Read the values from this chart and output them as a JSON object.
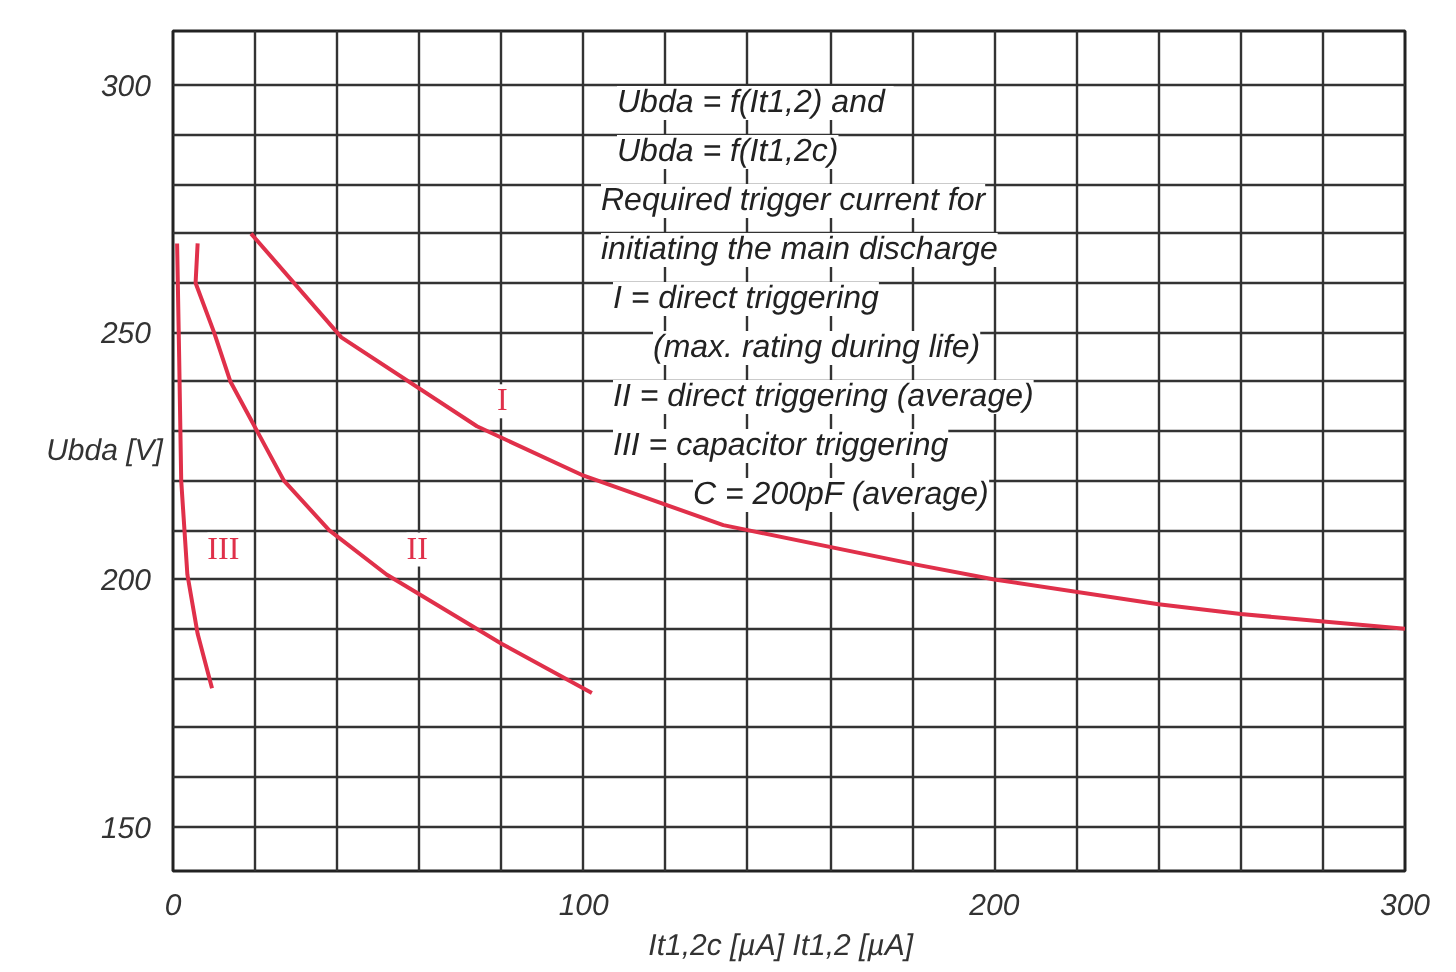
{
  "chart_data": {
    "type": "line",
    "xlabel": "It1,2c [µA]   It1,2 [µA]",
    "ylabel": "Ubda [V]",
    "xlim": [
      0,
      300
    ],
    "ylim": [
      141,
      311
    ],
    "xticks": [
      0,
      {
        "value": 20,
        "label": null
      },
      {
        "value": 40,
        "label": null
      },
      {
        "value": 60,
        "label": null
      },
      {
        "value": 80,
        "label": null
      },
      100,
      {
        "value": 120,
        "label": null
      },
      {
        "value": 140,
        "label": null
      },
      {
        "value": 160,
        "label": null
      },
      {
        "value": 180,
        "label": null
      },
      200,
      {
        "value": 220,
        "label": null
      },
      {
        "value": 240,
        "label": null
      },
      {
        "value": 260,
        "label": null
      },
      {
        "value": 280,
        "label": null
      },
      300
    ],
    "yticks": [
      150,
      {
        "value": 160,
        "label": null
      },
      {
        "value": 170,
        "label": null
      },
      {
        "value": 180,
        "label": null
      },
      {
        "value": 190,
        "label": null
      },
      200,
      {
        "value": 210,
        "label": null
      },
      {
        "value": 220,
        "label": null
      },
      {
        "value": 230,
        "label": null
      },
      {
        "value": 240,
        "label": null
      },
      250,
      {
        "value": 260,
        "label": null
      },
      {
        "value": 270,
        "label": null
      },
      {
        "value": 280,
        "label": null
      },
      {
        "value": 290,
        "label": null
      },
      300
    ],
    "grid": true,
    "series": [
      {
        "name": "I",
        "color": "#e0304a",
        "x": [
          19,
          41,
          74,
          100,
          134,
          181,
          200,
          240,
          260,
          300
        ],
        "values": [
          270,
          249,
          231,
          221,
          211,
          203,
          200,
          195,
          193,
          190
        ]
      },
      {
        "name": "II",
        "color": "#e0304a",
        "x": [
          6,
          5.5,
          10,
          14,
          27,
          38,
          52,
          80,
          102
        ],
        "values": [
          268,
          260,
          250,
          240,
          220,
          210,
          201,
          187,
          177
        ]
      },
      {
        "name": "III",
        "color": "#e0304a",
        "x": [
          1,
          1.5,
          2,
          3.5,
          6,
          9.5
        ],
        "values": [
          268,
          245,
          220,
          201,
          189,
          178
        ]
      }
    ],
    "annotations": [
      "Ubda = f(It1,2)  and",
      "Ubda = f(It1,2c)",
      "Required trigger current for",
      "initiating the main discharge",
      "I = direct triggering",
      "(max. rating during life)",
      "II = direct triggering (average)",
      "III = capacitor triggering",
      "C = 200pF (average)"
    ]
  }
}
